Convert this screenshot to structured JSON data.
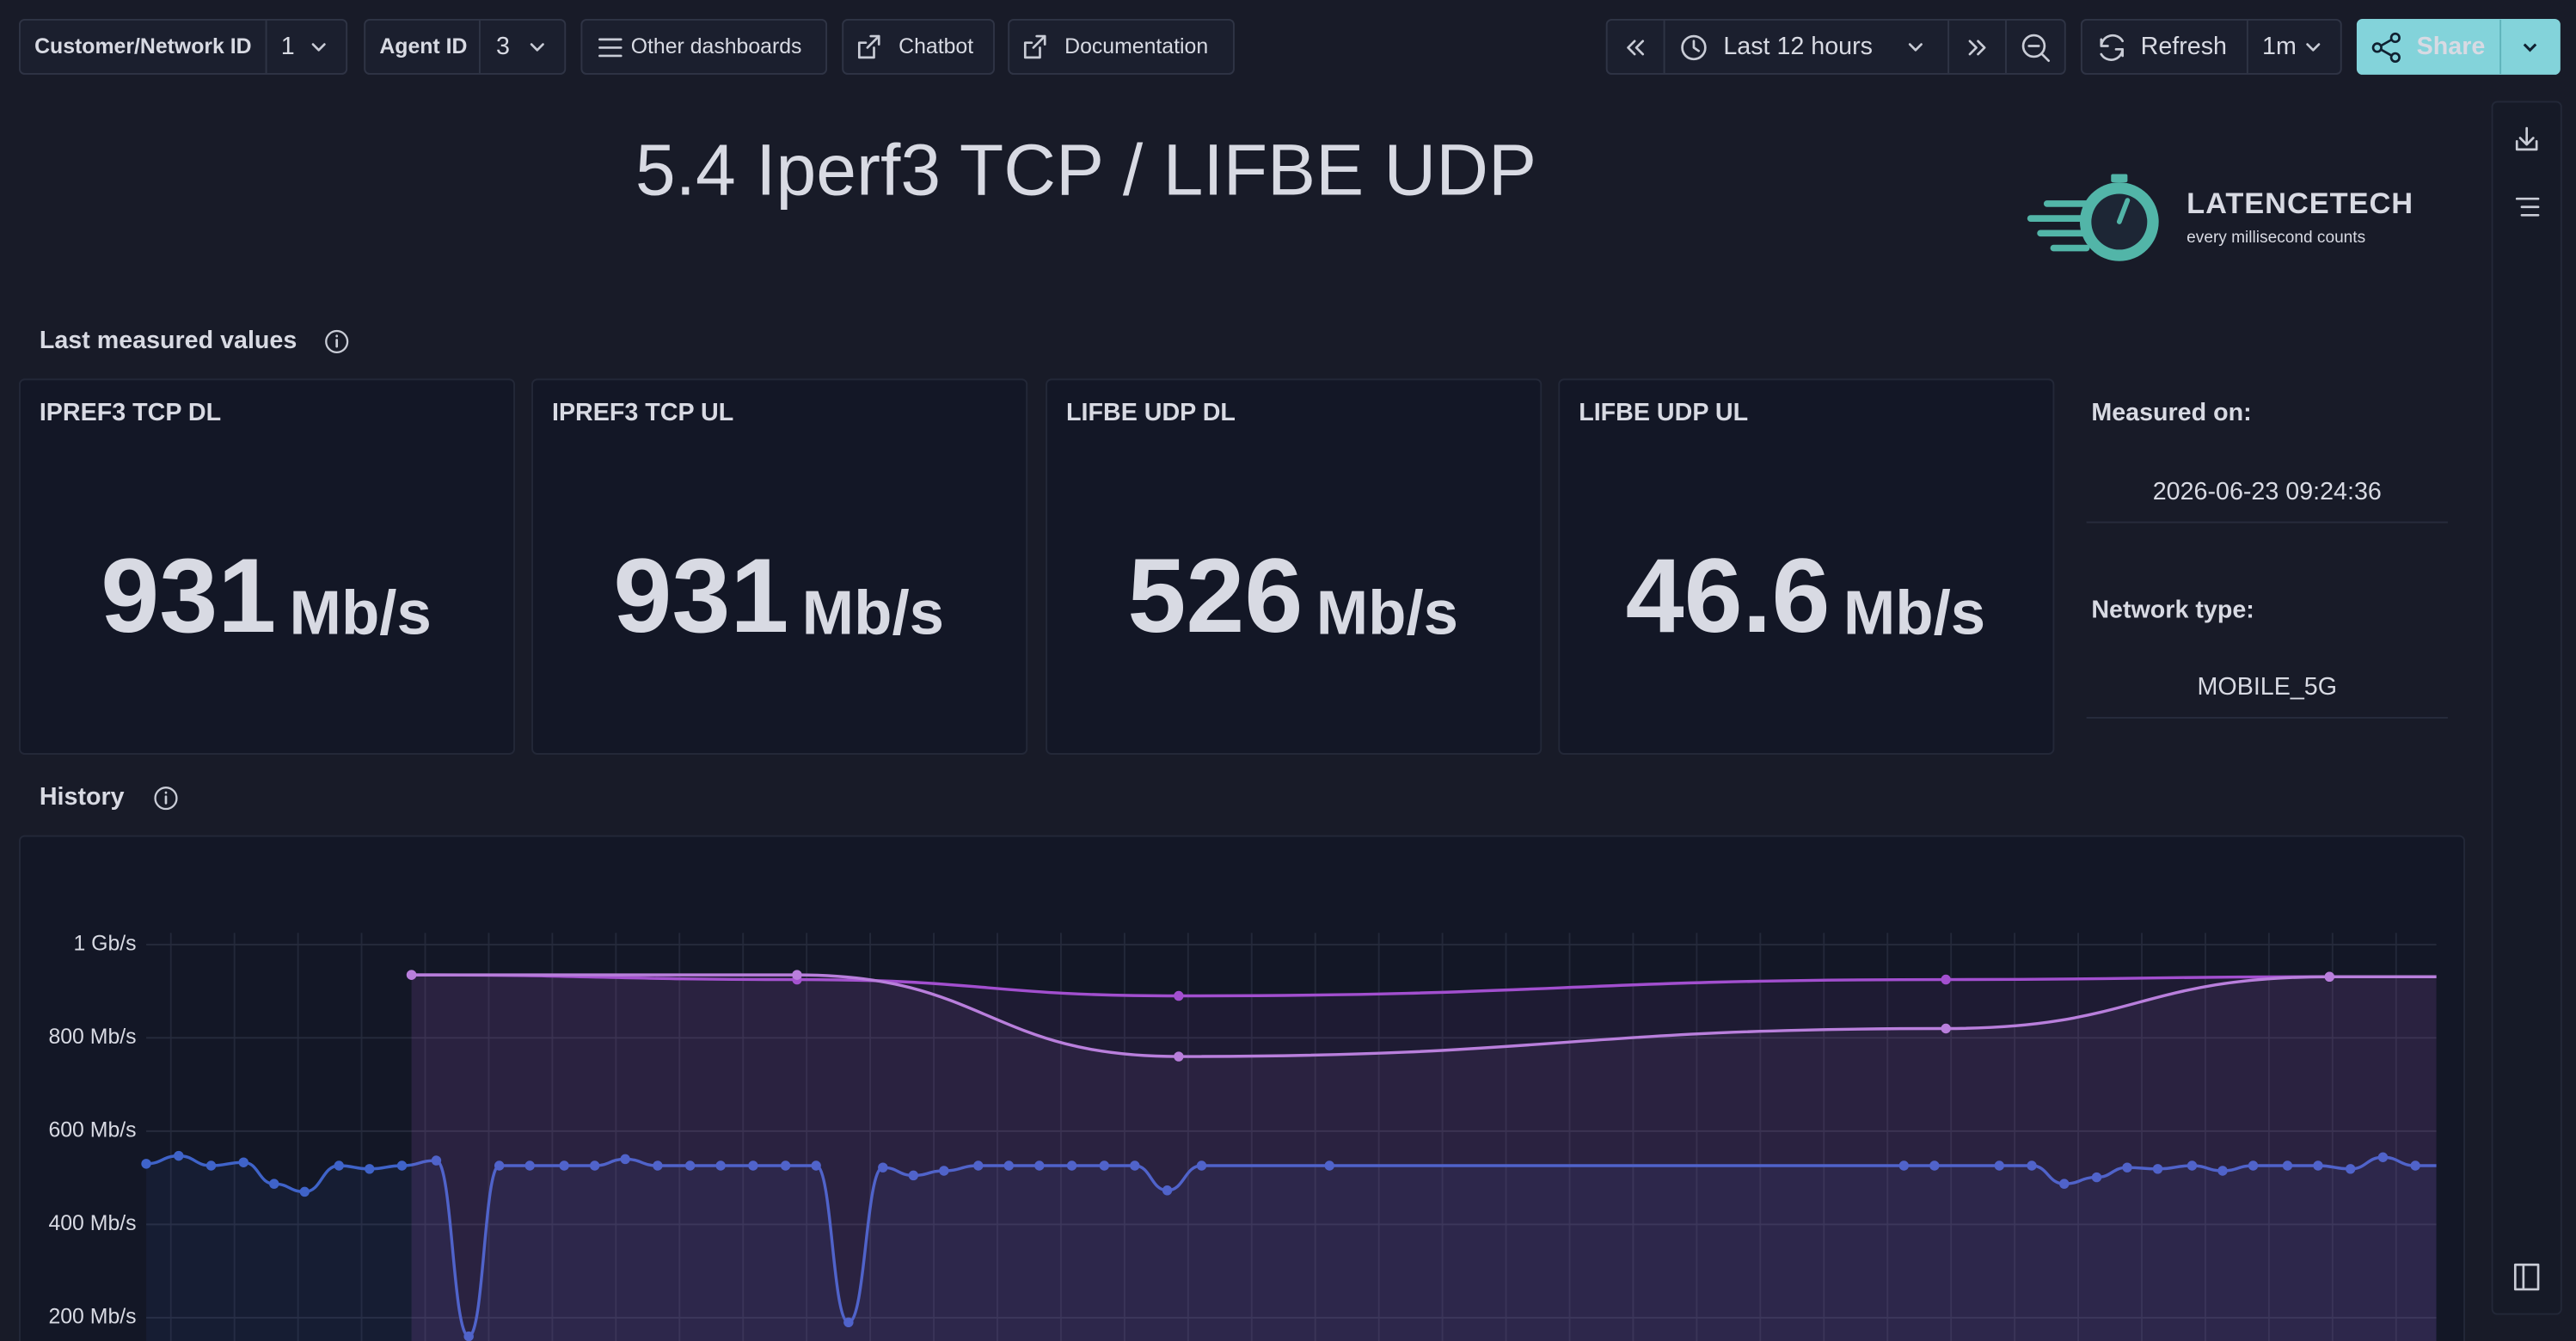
{
  "toolbar": {
    "customer_label": "Customer/Network ID",
    "customer_value": 1,
    "agent_label": "Agent ID",
    "agent_value": 3,
    "other_dashboards": "Other dashboards",
    "chatbot": "Chatbot",
    "documentation": "Documentation",
    "time_range": "Last 12 hours",
    "refresh": "Refresh",
    "refresh_interval": "1m",
    "share": "Share"
  },
  "header": {
    "title": "5.4 Iperf3 TCP / LIFBE UDP",
    "logo_name": "LATENCETECH",
    "logo_tagline": "every millisecond counts"
  },
  "last_values": {
    "title": "Last measured values",
    "stats": [
      {
        "label": "IPREF3 TCP DL",
        "value": 931,
        "unit": "Mb/s",
        "color": "#8c3fb7"
      },
      {
        "label": "IPREF3 TCP UL",
        "value": 931,
        "unit": "Mb/s",
        "color": "#a963d1"
      },
      {
        "label": "LIFBE UDP DL",
        "value": 526,
        "unit": "Mb/s",
        "color": "#3a62c0"
      },
      {
        "label": "LIFBE UDP UL",
        "value": 46.6,
        "unit": "Mb/s",
        "color": "#5b88e0"
      }
    ],
    "measured_on_label": "Measured on:",
    "measured_on": "2026-06-23 09:24:36",
    "network_type_label": "Network type:",
    "network_type": "MOBILE_5G"
  },
  "history": {
    "title": "History",
    "chart_data": {
      "type": "line",
      "xlim": [
        0,
        12
      ],
      "ylim": [
        150,
        1025
      ],
      "grid": true,
      "yticks": [
        {
          "value": 1000,
          "label": "1 Gb/s"
        },
        {
          "value": 800,
          "label": "800 Mb/s"
        },
        {
          "value": 600,
          "label": "600 Mb/s"
        },
        {
          "value": 400,
          "label": "400 Mb/s"
        },
        {
          "value": 200,
          "label": "200 Mb/s"
        }
      ],
      "series": [
        {
          "color": "#a24fcf",
          "x": [
            1.39,
            3.41,
            5.41,
            9.43,
            11.44
          ],
          "values": [
            935,
            925,
            890,
            925,
            931
          ]
        },
        {
          "color": "#b97fdc",
          "x": [
            1.39,
            3.41,
            5.41,
            9.43,
            11.44
          ],
          "values": [
            935,
            935,
            760,
            820,
            931
          ]
        },
        {
          "color": "#3f63c9",
          "x": [
            0,
            0.17,
            0.34,
            0.51,
            0.67,
            0.83,
            1.01,
            1.17,
            1.34,
            1.52,
            1.69,
            1.85,
            2.01,
            2.19,
            2.35,
            2.51,
            2.68,
            2.85,
            3.01,
            3.18,
            3.35,
            3.51,
            3.68,
            3.86,
            4.02,
            4.18,
            4.36,
            4.52,
            4.68,
            4.85,
            5.02,
            5.18,
            5.35,
            5.53,
            6.2,
            9.21,
            9.37,
            9.71,
            9.88,
            10.05,
            10.22,
            10.38,
            10.54,
            10.72,
            10.88,
            11.04,
            11.22,
            11.38,
            11.55,
            11.72,
            11.89
          ],
          "values": [
            530,
            547,
            526,
            533,
            487,
            470,
            526,
            519,
            526,
            537,
            160,
            526,
            526,
            526,
            526,
            540,
            526,
            526,
            526,
            526,
            526,
            526,
            190,
            522,
            505,
            515,
            526,
            526,
            526,
            526,
            526,
            526,
            473,
            526,
            526,
            526,
            526,
            526,
            526,
            487,
            501,
            522,
            519,
            526,
            515,
            526,
            526,
            526,
            519,
            544,
            526
          ]
        }
      ]
    }
  }
}
